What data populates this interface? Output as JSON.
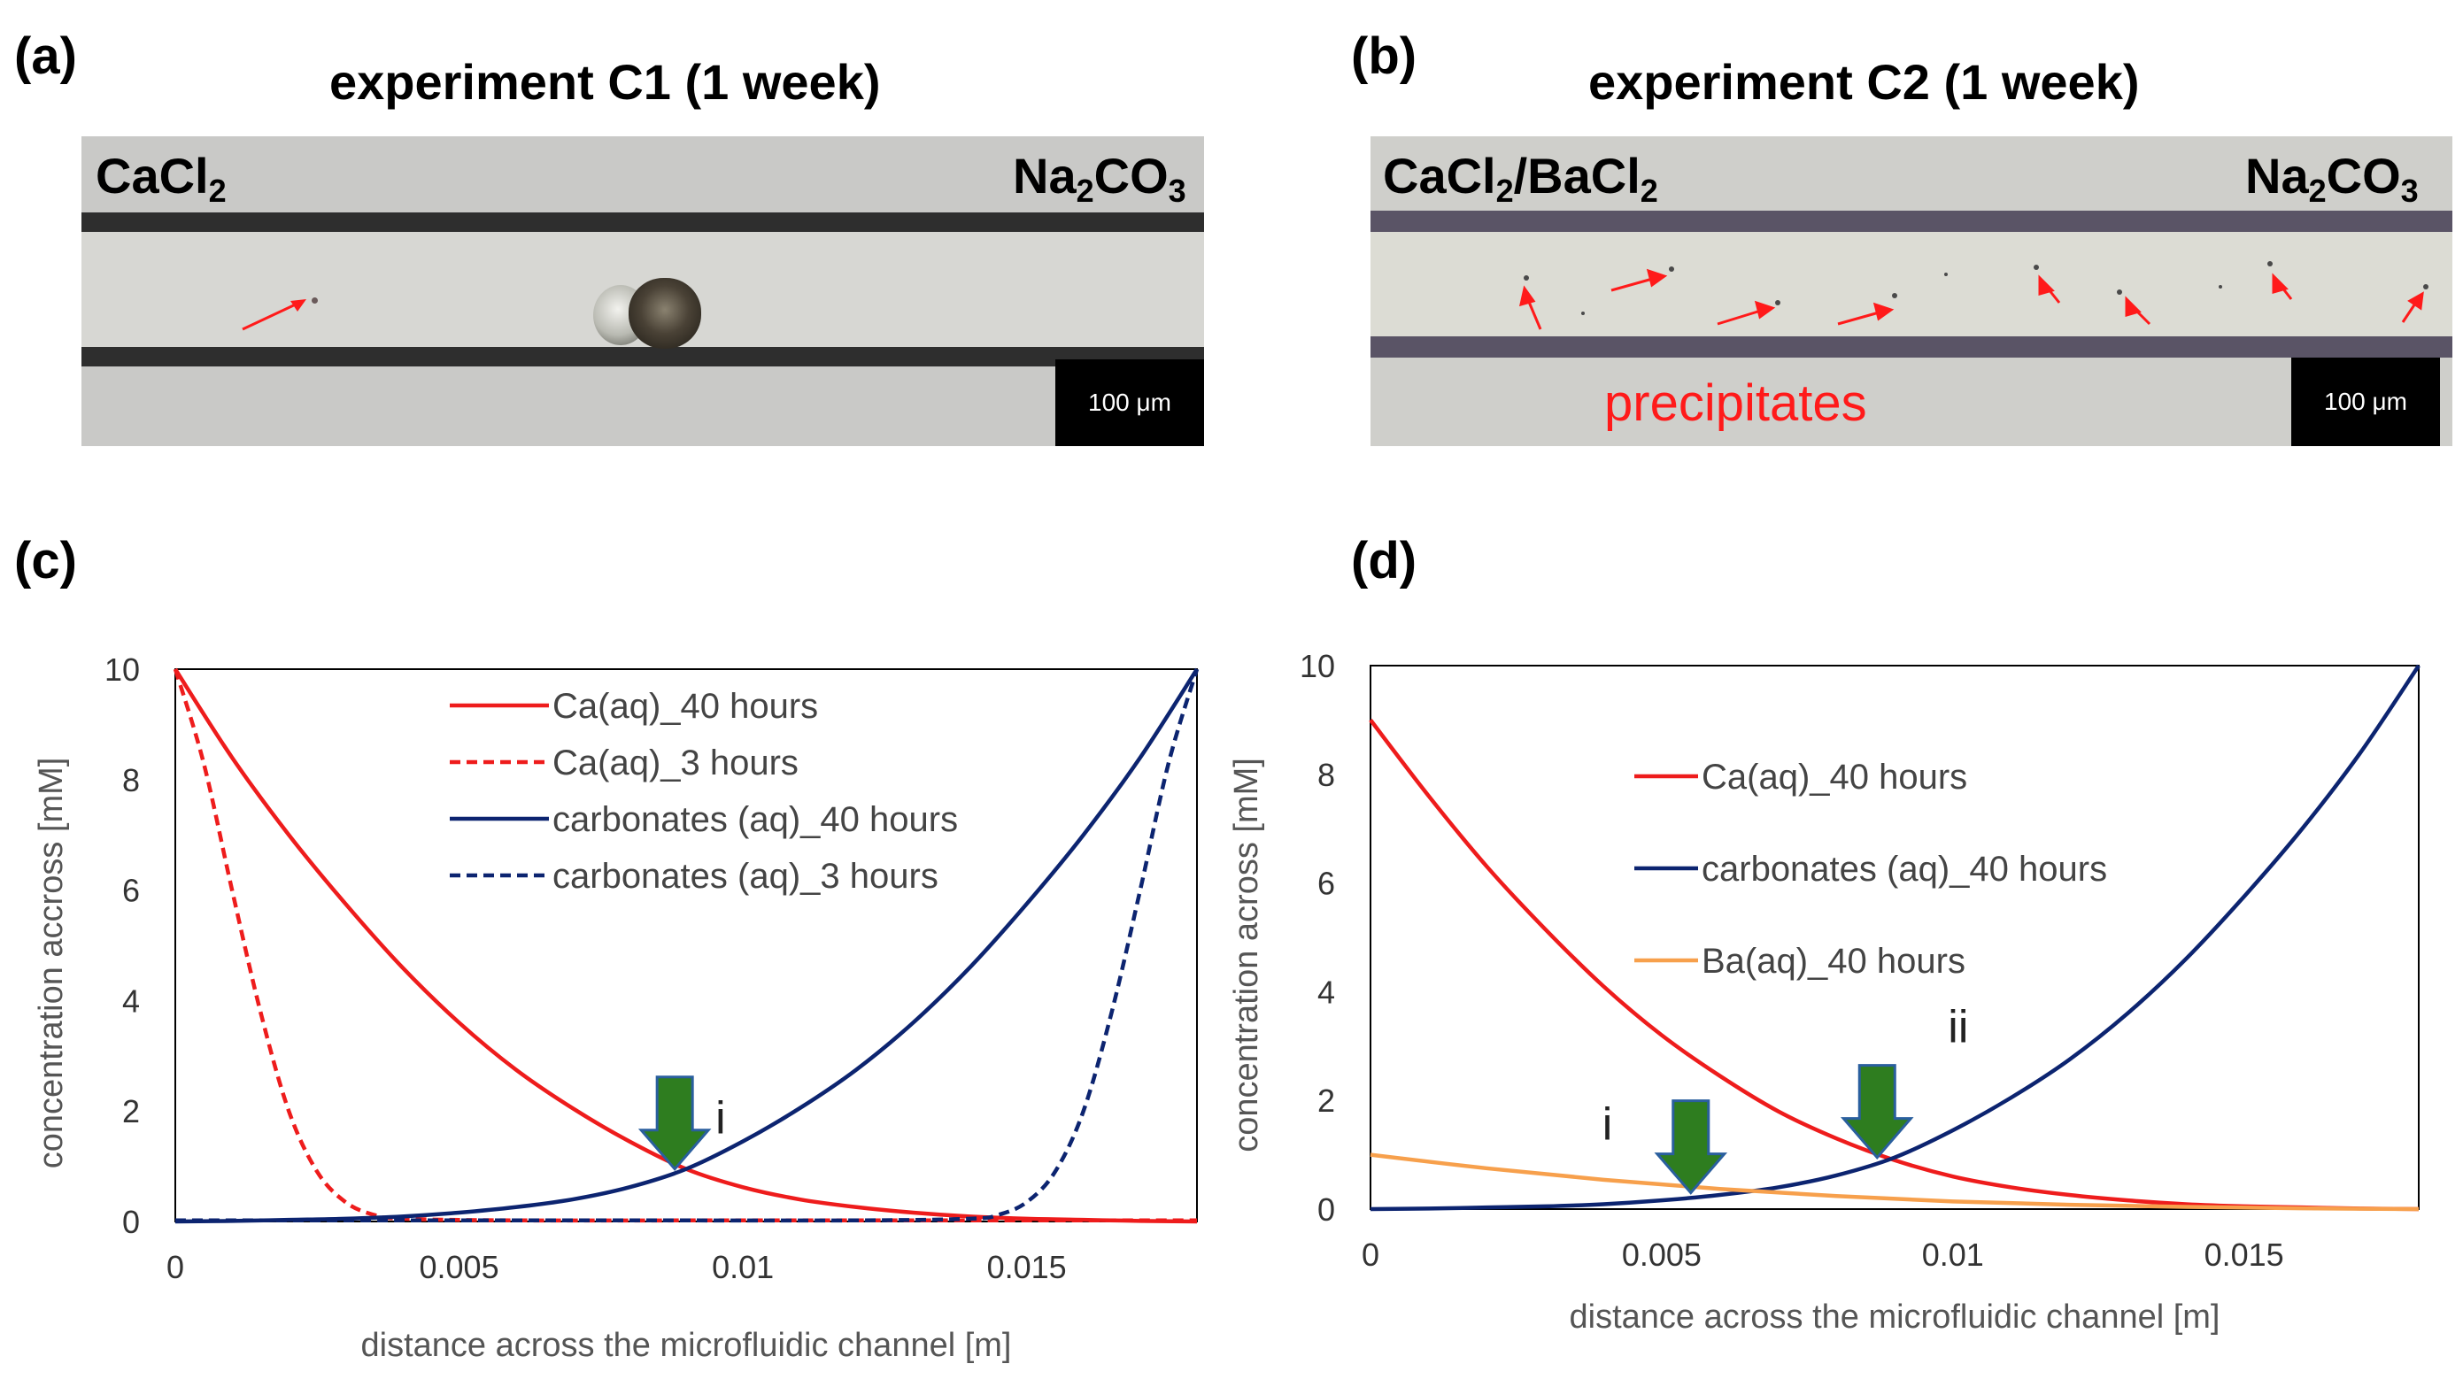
{
  "panels": {
    "a": {
      "letter": "(a)",
      "title": "experiment C1 (1 week)",
      "left_label": "CaCl",
      "left_sub": "2",
      "right_label_a": "Na",
      "right_sub_a": "2",
      "right_label_b": "CO",
      "right_sub_b": "3",
      "scale": "100 μm"
    },
    "b": {
      "letter": "(b)",
      "title": "experiment C2 (1 week)",
      "left_label_a": "CaCl",
      "left_sub_a": "2",
      "left_label_b": "/BaCl",
      "left_sub_b": "2",
      "right_label_a": "Na",
      "right_sub_a": "2",
      "right_label_b": "CO",
      "right_sub_b": "3",
      "scale": "100 μm",
      "annotation": "precipitates"
    },
    "c": {
      "letter": "(c)"
    },
    "d": {
      "letter": "(d)"
    }
  },
  "colors": {
    "ca": "#ee1c1c",
    "carbonates": "#0c2470",
    "ba": "#f7a04c",
    "arrow": "#2e7d1f",
    "arrow_edge": "#2a5f9e",
    "red_annotation": "#ff1a1a"
  },
  "chart_data": [
    {
      "panel": "c",
      "type": "line",
      "xlabel": "distance across the microfluidic channel [m]",
      "ylabel": "concentration accross [mM]",
      "xlim": [
        0,
        0.018
      ],
      "ylim": [
        0,
        10
      ],
      "xticks": [
        0,
        0.005,
        0.01,
        0.015
      ],
      "xtick_labels": [
        "0",
        "0.005",
        "0.01",
        "0.015"
      ],
      "yticks": [
        0,
        2,
        4,
        6,
        8,
        10
      ],
      "ytick_labels": [
        "0",
        "2",
        "4",
        "6",
        "8",
        "10"
      ],
      "legend_position": "top-center",
      "series": [
        {
          "name": "Ca(aq)_40 hours",
          "color": "#ee1c1c",
          "dash": "solid",
          "x": [
            0,
            0.001,
            0.002,
            0.003,
            0.004,
            0.005,
            0.006,
            0.007,
            0.008,
            0.009,
            0.01,
            0.011,
            0.012,
            0.013,
            0.014,
            0.015,
            0.016,
            0.017,
            0.018
          ],
          "y": [
            10,
            8.4,
            7.0,
            5.75,
            4.6,
            3.6,
            2.75,
            2.05,
            1.45,
            0.95,
            0.62,
            0.4,
            0.26,
            0.16,
            0.09,
            0.05,
            0.03,
            0.01,
            0
          ]
        },
        {
          "name": "Ca(aq)_3 hours",
          "color": "#ee1c1c",
          "dash": "dashed",
          "x": [
            0,
            0.0005,
            0.001,
            0.0015,
            0.002,
            0.0025,
            0.003,
            0.0035,
            0.004,
            0.006,
            0.01,
            0.014,
            0.018
          ],
          "y": [
            10,
            8.3,
            6.0,
            3.8,
            2.0,
            0.9,
            0.35,
            0.12,
            0.05,
            0.02,
            0.02,
            0.02,
            0.02
          ]
        },
        {
          "name": "carbonates (aq)_40 hours",
          "color": "#0c2470",
          "dash": "solid",
          "x": [
            0,
            0.001,
            0.002,
            0.003,
            0.004,
            0.005,
            0.006,
            0.007,
            0.008,
            0.009,
            0.01,
            0.011,
            0.012,
            0.013,
            0.014,
            0.015,
            0.016,
            0.017,
            0.018
          ],
          "y": [
            0,
            0.01,
            0.03,
            0.05,
            0.09,
            0.16,
            0.26,
            0.4,
            0.62,
            0.95,
            1.45,
            2.05,
            2.75,
            3.6,
            4.6,
            5.75,
            7.0,
            8.4,
            10
          ]
        },
        {
          "name": "carbonates (aq)_3 hours",
          "color": "#0c2470",
          "dash": "dashed",
          "x": [
            0,
            0.004,
            0.008,
            0.012,
            0.014,
            0.0145,
            0.015,
            0.0155,
            0.016,
            0.0165,
            0.017,
            0.0175,
            0.018
          ],
          "y": [
            0.02,
            0.02,
            0.02,
            0.02,
            0.05,
            0.12,
            0.35,
            0.9,
            2.0,
            3.8,
            6.0,
            8.3,
            10
          ]
        }
      ],
      "annotations": [
        {
          "text": "i",
          "x": 0.0088,
          "y": 0.95
        }
      ]
    },
    {
      "panel": "d",
      "type": "line",
      "xlabel": "distance across the microfluidic channel [m]",
      "ylabel": "concentration across [mM]",
      "xlim": [
        0,
        0.018
      ],
      "ylim": [
        0,
        10
      ],
      "xticks": [
        0,
        0.005,
        0.01,
        0.015
      ],
      "xtick_labels": [
        "0",
        "0.005",
        "0.01",
        "0.015"
      ],
      "yticks": [
        0,
        2,
        4,
        6,
        8,
        10
      ],
      "ytick_labels": [
        "0",
        "2",
        "4",
        "6",
        "8",
        "10"
      ],
      "legend_position": "top-left",
      "series": [
        {
          "name": "Ca(aq)_40 hours",
          "color": "#ee1c1c",
          "dash": "solid",
          "x": [
            0,
            0.001,
            0.002,
            0.003,
            0.004,
            0.005,
            0.006,
            0.007,
            0.008,
            0.009,
            0.01,
            0.011,
            0.012,
            0.013,
            0.014,
            0.015,
            0.016,
            0.017,
            0.018
          ],
          "y": [
            9,
            7.6,
            6.3,
            5.15,
            4.1,
            3.2,
            2.45,
            1.8,
            1.3,
            0.9,
            0.6,
            0.4,
            0.26,
            0.16,
            0.09,
            0.05,
            0.03,
            0.01,
            0
          ]
        },
        {
          "name": "carbonates (aq)_40 hours",
          "color": "#0c2470",
          "dash": "solid",
          "x": [
            0,
            0.001,
            0.002,
            0.003,
            0.004,
            0.005,
            0.006,
            0.007,
            0.008,
            0.009,
            0.01,
            0.011,
            0.012,
            0.013,
            0.014,
            0.015,
            0.016,
            0.017,
            0.018
          ],
          "y": [
            0,
            0.01,
            0.03,
            0.05,
            0.09,
            0.16,
            0.26,
            0.4,
            0.62,
            0.95,
            1.45,
            2.05,
            2.75,
            3.6,
            4.6,
            5.75,
            7.0,
            8.4,
            10
          ]
        },
        {
          "name": "Ba(aq)_40 hours",
          "color": "#f7a04c",
          "dash": "solid",
          "x": [
            0,
            0.002,
            0.004,
            0.006,
            0.008,
            0.01,
            0.012,
            0.014,
            0.016,
            0.018
          ],
          "y": [
            1.0,
            0.75,
            0.54,
            0.37,
            0.24,
            0.14,
            0.08,
            0.04,
            0.015,
            0
          ]
        }
      ],
      "annotations": [
        {
          "text": "i",
          "x": 0.0055,
          "y": 0.3
        },
        {
          "text": "ii",
          "x": 0.0087,
          "y": 0.95
        }
      ]
    }
  ]
}
